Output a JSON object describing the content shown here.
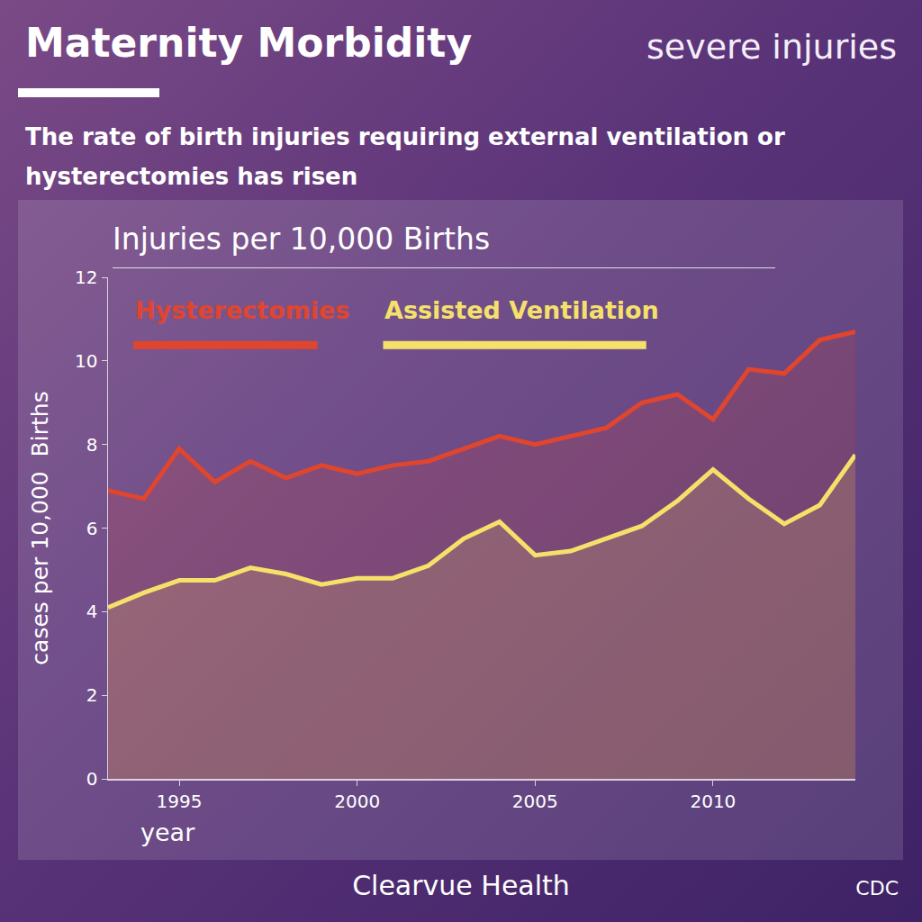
{
  "title": "Maternity Morbidity",
  "corner_label": "severe injuries",
  "subtitle": "The rate of birth injuries requiring external ventilation or hysterectomies has risen",
  "brand": "Clearvue Health",
  "source": "CDC",
  "chart_data": {
    "type": "area",
    "title": "Injuries per 10,000 Births",
    "x_label": "year",
    "y_label": "cases per 10,000  Births",
    "x": [
      1993,
      1994,
      1995,
      1996,
      1997,
      1998,
      1999,
      2000,
      2001,
      2002,
      2003,
      2004,
      2005,
      2006,
      2007,
      2008,
      2009,
      2010,
      2011,
      2012,
      2013,
      2014
    ],
    "series": [
      {
        "name": "Hysterectomies",
        "color": "#e0452e",
        "values": [
          6.9,
          6.7,
          7.9,
          7.1,
          7.6,
          7.2,
          7.5,
          7.3,
          7.5,
          7.6,
          7.9,
          8.2,
          8.0,
          8.2,
          8.4,
          9.0,
          9.2,
          8.6,
          9.8,
          9.7,
          10.5,
          10.7
        ]
      },
      {
        "name": "Assisted Ventilation",
        "color": "#f5e16a",
        "values": [
          4.1,
          4.45,
          4.75,
          4.75,
          5.05,
          4.9,
          4.65,
          4.8,
          4.8,
          5.1,
          5.75,
          6.15,
          5.35,
          5.45,
          5.75,
          6.05,
          6.65,
          7.4,
          6.7,
          6.1,
          6.55,
          7.75
        ]
      }
    ],
    "xlim": [
      1993,
      2014
    ],
    "xticks": [
      1995,
      2000,
      2005,
      2010
    ],
    "ylim": [
      0,
      12
    ],
    "yticks": [
      0,
      2,
      4,
      6,
      8,
      10,
      12
    ],
    "legend": "top-left",
    "grid": false
  }
}
